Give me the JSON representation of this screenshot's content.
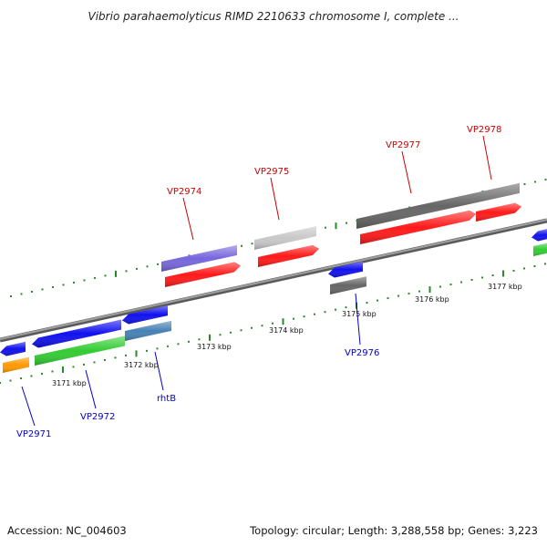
{
  "title": "Vibrio parahaemolyticus RIMD 2210633 chromosome I, complete ...",
  "footer": {
    "accession": "Accession: NC_004603",
    "summary": "Topology: circular; Length: 3,288,558 bp; Genes: 3,223"
  },
  "ticks": [
    "3171 kbp",
    "3172 kbp",
    "3173 kbp",
    "3174 kbp",
    "3175 kbp",
    "3176 kbp",
    "3177 kbp"
  ],
  "gene_labels": [
    {
      "id": "VP2974",
      "color": "#cc0000"
    },
    {
      "id": "VP2975",
      "color": "#cc0000"
    },
    {
      "id": "VP2977",
      "color": "#cc0000"
    },
    {
      "id": "VP2978",
      "color": "#cc0000"
    },
    {
      "id": "VP2976",
      "color": "#0000cc"
    },
    {
      "id": "VP2971",
      "color": "#0000cc"
    },
    {
      "id": "VP2972",
      "color": "#0000cc"
    },
    {
      "id": "rhtB",
      "color": "#0000cc"
    }
  ],
  "colors": {
    "red": "#ff1a1a",
    "blue": "#1111ee",
    "green": "#33cc33",
    "purple": "#7766dd",
    "lightgray": "#c8c8c8",
    "darkgray": "#666666",
    "orange": "#ff9900",
    "steelblue": "#4682b4",
    "backbone": "#8c8c8c",
    "tick": "#2a8a2a"
  }
}
